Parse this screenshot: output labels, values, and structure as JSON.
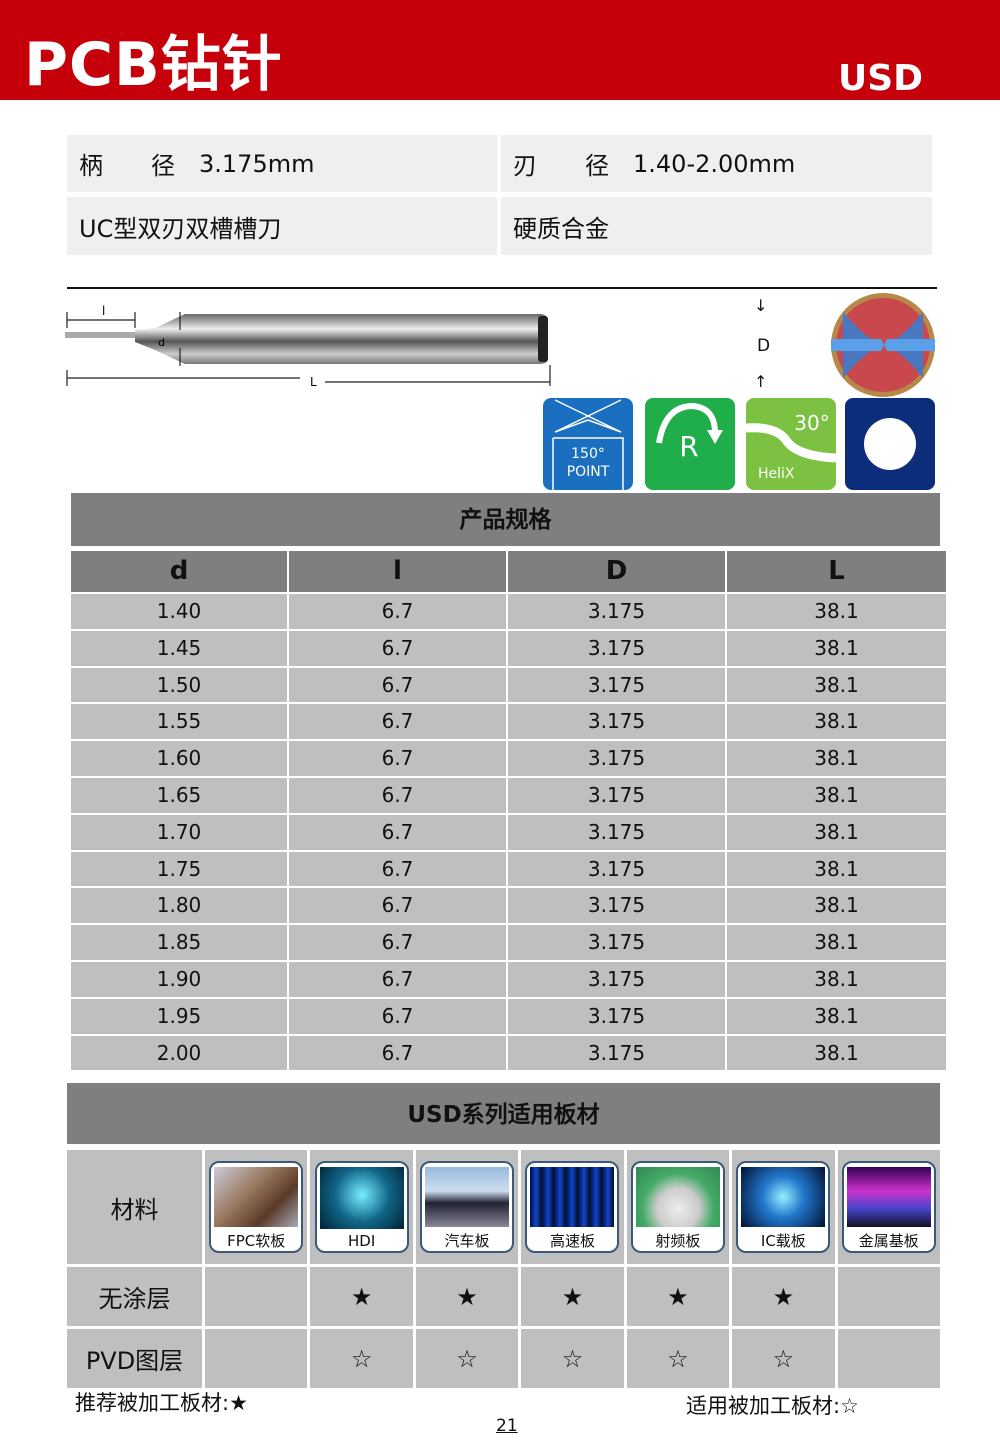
{
  "header": {
    "title": "PCB钻针",
    "series": "USD",
    "color": "#c5000b"
  },
  "info": {
    "shank_label": "柄　　径",
    "shank_value": "3.175mm",
    "blade_label": "刃　　径",
    "blade_value": "1.40-2.00mm",
    "type": "UC型双刃双槽槽刀",
    "material": "硬质合金"
  },
  "diagram": {
    "l_label": "l",
    "d_label": "d",
    "L_label": "L",
    "D_label": "D"
  },
  "feature_icons": [
    {
      "name": "point-angle-icon",
      "line1": "150°",
      "line2": "POINT",
      "color": "#1a6fc0"
    },
    {
      "name": "right-hand-rotation-icon",
      "text": "R",
      "color": "#1fae4a"
    },
    {
      "name": "helix-angle-icon",
      "angle": "30°",
      "text": "HeliX",
      "color": "#7dc142"
    },
    {
      "name": "round-shank-icon",
      "color": "#0c2d7a"
    }
  ],
  "spec": {
    "title": "产品规格",
    "columns": [
      "d",
      "l",
      "D",
      "L"
    ],
    "rows": [
      [
        "1.40",
        "6.7",
        "3.175",
        "38.1"
      ],
      [
        "1.45",
        "6.7",
        "3.175",
        "38.1"
      ],
      [
        "1.50",
        "6.7",
        "3.175",
        "38.1"
      ],
      [
        "1.55",
        "6.7",
        "3.175",
        "38.1"
      ],
      [
        "1.60",
        "6.7",
        "3.175",
        "38.1"
      ],
      [
        "1.65",
        "6.7",
        "3.175",
        "38.1"
      ],
      [
        "1.70",
        "6.7",
        "3.175",
        "38.1"
      ],
      [
        "1.75",
        "6.7",
        "3.175",
        "38.1"
      ],
      [
        "1.80",
        "6.7",
        "3.175",
        "38.1"
      ],
      [
        "1.85",
        "6.7",
        "3.175",
        "38.1"
      ],
      [
        "1.90",
        "6.7",
        "3.175",
        "38.1"
      ],
      [
        "1.95",
        "6.7",
        "3.175",
        "38.1"
      ],
      [
        "2.00",
        "6.7",
        "3.175",
        "38.1"
      ]
    ]
  },
  "materials": {
    "title": "USD系列适用板材",
    "row_labels": [
      "材料",
      "无涂层",
      "PVD图层"
    ],
    "boards": [
      "FPC软板",
      "HDI",
      "汽车板",
      "高速板",
      "射频板",
      "IC载板",
      "金属基板"
    ],
    "uncoated": [
      "",
      "★",
      "★",
      "★",
      "★",
      "★",
      ""
    ],
    "pvd": [
      "",
      "☆",
      "☆",
      "☆",
      "☆",
      "☆",
      ""
    ]
  },
  "legend": {
    "recommended": "推荐被加工板材:★",
    "applicable": "适用被加工板材:☆"
  },
  "page_number": "21"
}
